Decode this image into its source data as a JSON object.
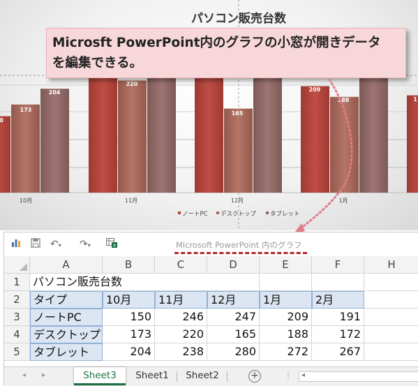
{
  "chart": {
    "title": "パソコン販売台数",
    "categories": [
      "10月",
      "11月",
      "12月",
      "1月"
    ],
    "bar_labels": [
      "0",
      "173",
      "204",
      "220",
      "165",
      "209",
      "188",
      "1"
    ],
    "legend": [
      "ノートPC",
      "デスクトップ",
      "タブレット"
    ]
  },
  "chart_data": {
    "type": "bar",
    "title": "パソコン販売台数",
    "categories": [
      "10月",
      "11月",
      "12月",
      "1月",
      "2月"
    ],
    "series": [
      {
        "name": "ノートPC",
        "values": [
          150,
          246,
          247,
          209,
          191
        ]
      },
      {
        "name": "デスクトップ",
        "values": [
          173,
          220,
          165,
          188,
          172
        ]
      },
      {
        "name": "タブレット",
        "values": [
          204,
          238,
          280,
          272,
          267
        ]
      }
    ],
    "legend_position": "bottom",
    "grid": true
  },
  "callout": {
    "line1": "Microsft PowerPoint内のグラフの小窓が開きデータ",
    "line2": "を編集できる。"
  },
  "window": {
    "title": "Microsoft PowerPoint 内のグラフ",
    "toolbar_icons": [
      "chart-icon",
      "save-icon",
      "undo-icon",
      "redo-icon",
      "excel-icon"
    ]
  },
  "sheet": {
    "columns": [
      "A",
      "B",
      "C",
      "D",
      "E",
      "F",
      "H"
    ],
    "row_numbers": [
      "1",
      "2",
      "3",
      "4",
      "5"
    ],
    "a1": "パソコン販売台数",
    "header_row": [
      "タイプ",
      "10月",
      "11月",
      "12月",
      "1月",
      "2月"
    ],
    "rows": [
      [
        "ノートPC",
        "150",
        "246",
        "247",
        "209",
        "191"
      ],
      [
        "デスクトップ",
        "173",
        "220",
        "165",
        "188",
        "172"
      ],
      [
        "タブレット",
        "204",
        "238",
        "280",
        "272",
        "267"
      ]
    ]
  },
  "tabs": [
    "Sheet3",
    "Sheet1",
    "Sheet2"
  ],
  "colors": {
    "notepc": "#b5453c",
    "desktop": "#a3675a",
    "tablet": "#8d6764",
    "callout_bg": "#f8d7da",
    "active_tab": "#1e7145",
    "dashed_accent": "#b3262d"
  }
}
